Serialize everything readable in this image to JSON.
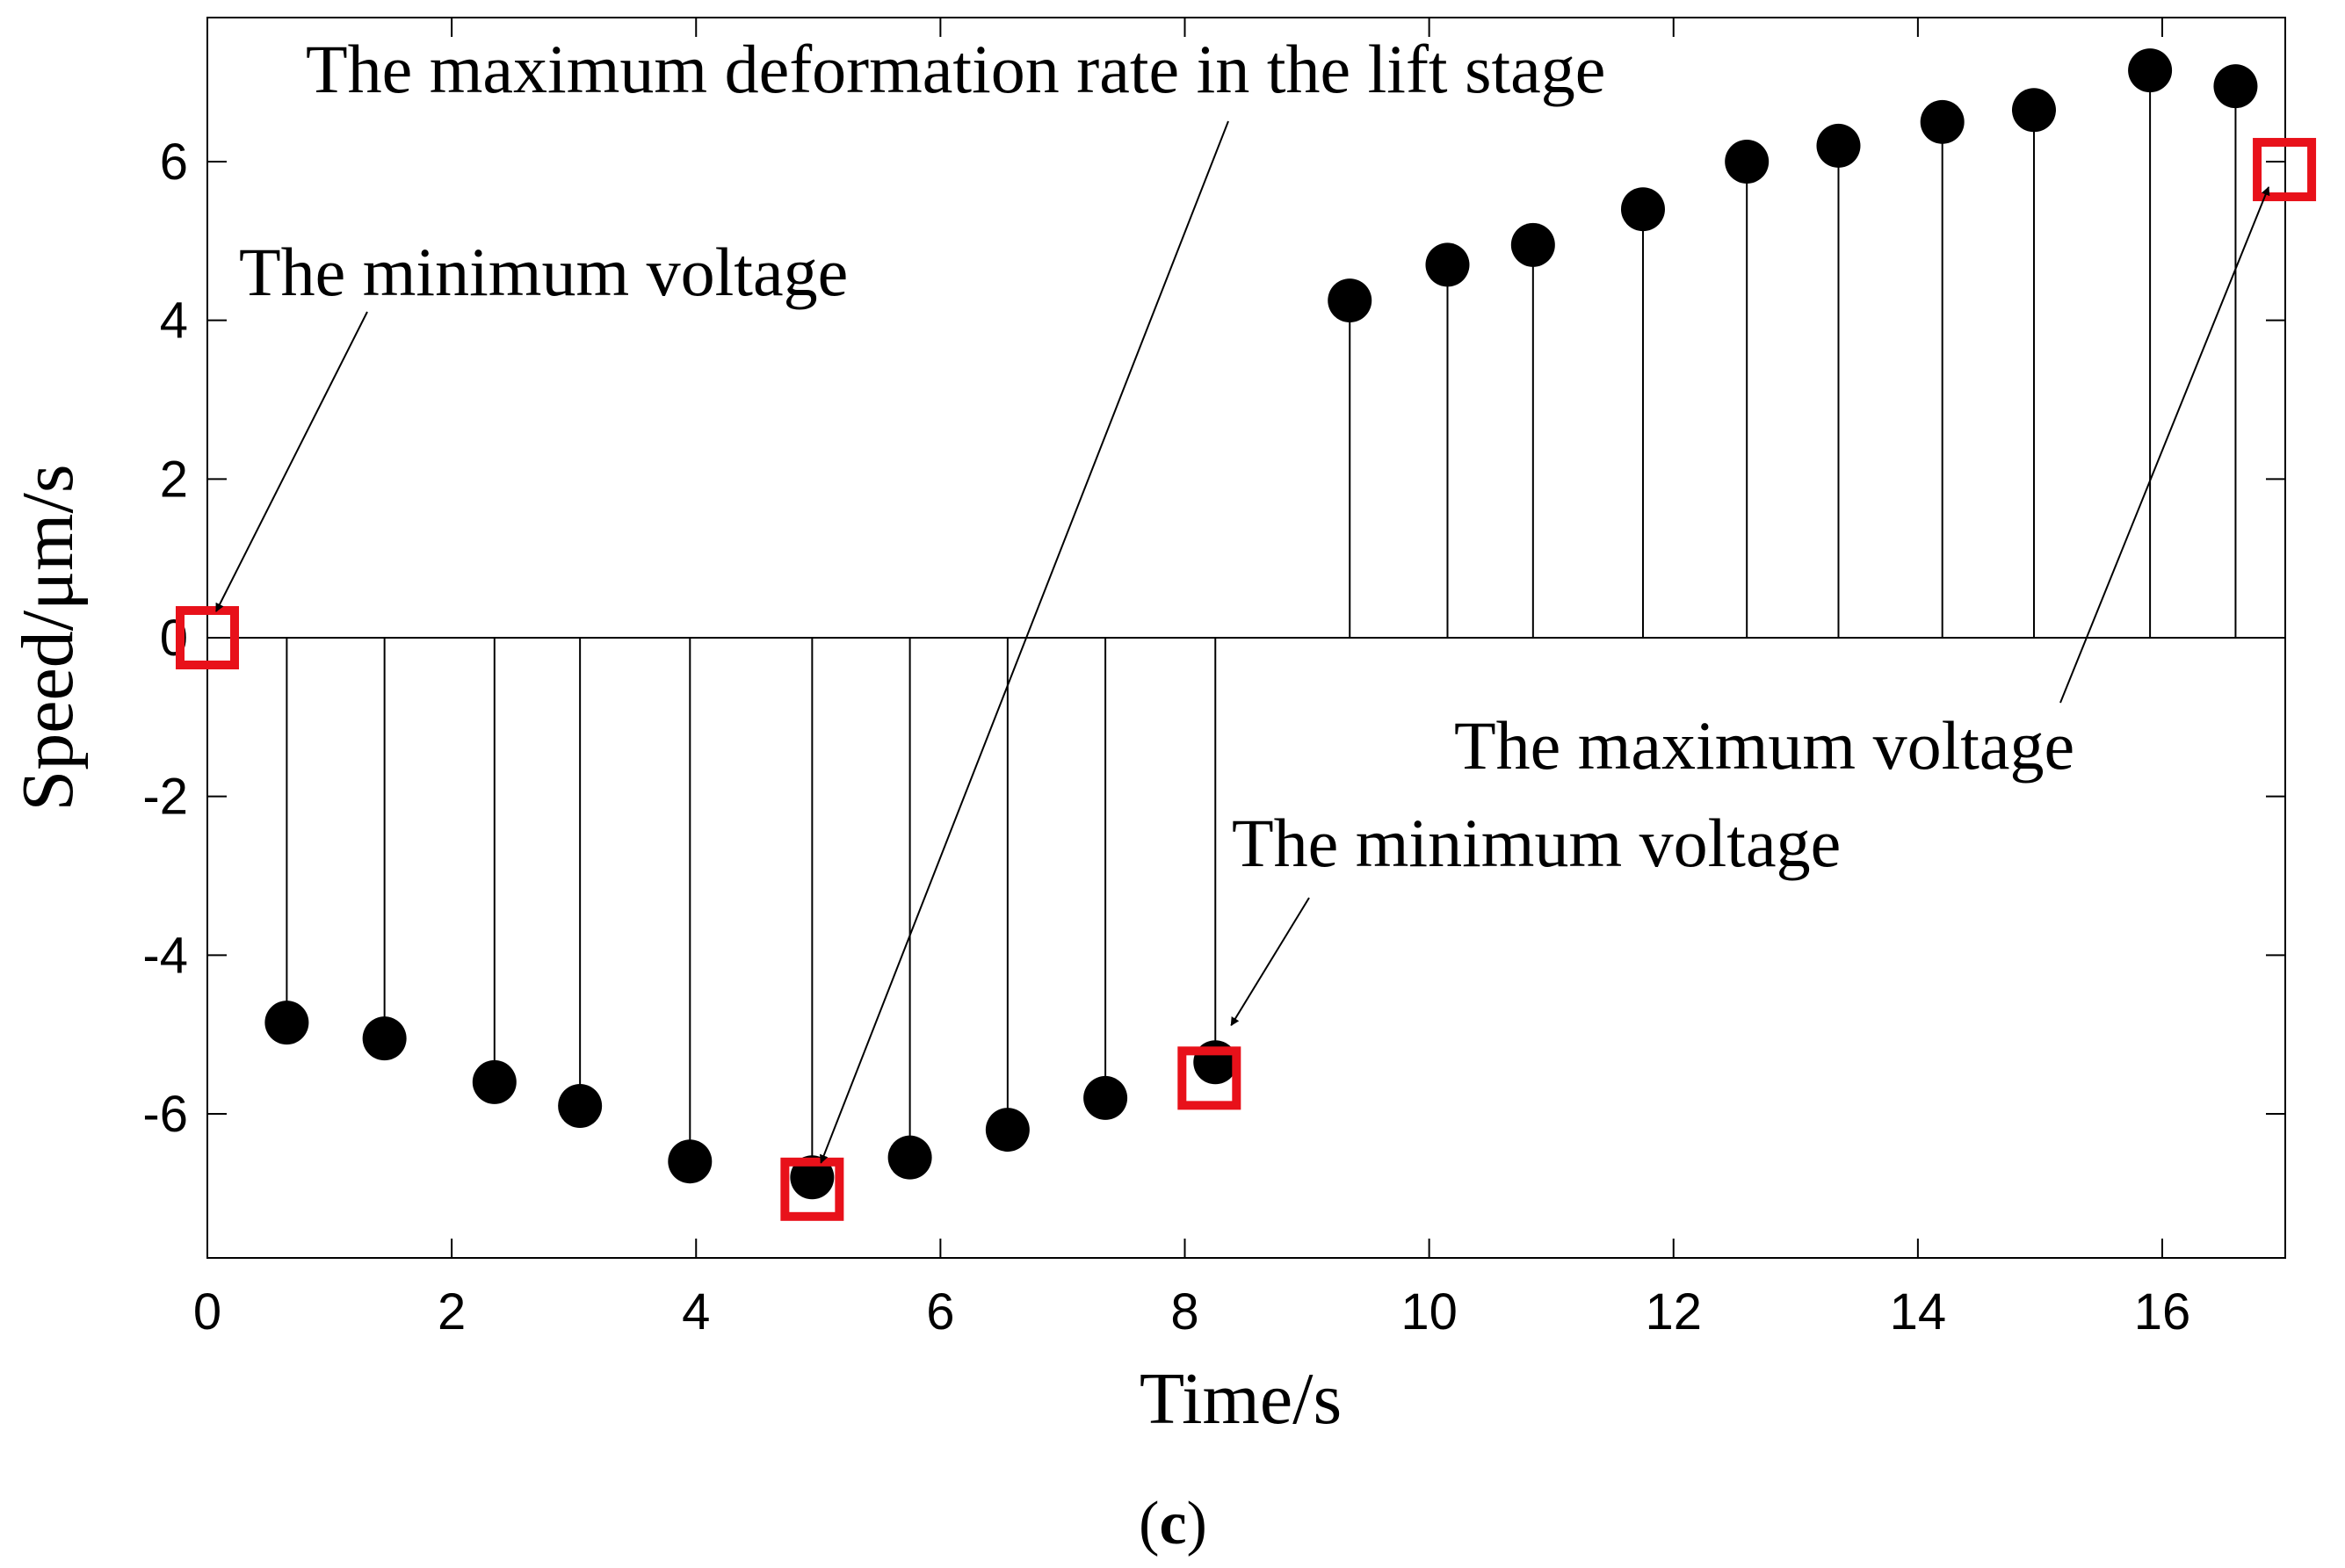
{
  "chart_data": {
    "type": "stem",
    "xlabel": "Time/s",
    "ylabel": "Speed/μm/s",
    "xlim": [
      0,
      17
    ],
    "ylim": [
      -7.8,
      7.8
    ],
    "xticks": [
      0,
      2,
      4,
      6,
      8,
      10,
      12,
      14,
      16
    ],
    "yticks": [
      -6,
      -4,
      -2,
      0,
      2,
      4,
      6
    ],
    "xtick_labels": [
      "0",
      "2",
      "4",
      "6",
      "8",
      "10",
      "12",
      "14",
      "16"
    ],
    "ytick_labels": [
      "-6",
      "-4",
      "-2",
      "0",
      "2",
      "4",
      "6"
    ],
    "baseline": 0,
    "series": [
      {
        "name": "speed",
        "x": [
          0.65,
          1.45,
          2.35,
          3.05,
          3.95,
          4.95,
          5.75,
          6.55,
          7.35,
          8.25,
          9.35,
          10.15,
          10.85,
          11.75,
          12.6,
          13.35,
          14.2,
          14.95,
          15.9,
          16.6
        ],
        "y": [
          -4.85,
          -5.05,
          -5.6,
          -5.9,
          -6.6,
          -6.8,
          -6.55,
          -6.2,
          -5.8,
          -5.35,
          4.25,
          4.7,
          4.95,
          5.4,
          6.0,
          6.2,
          6.5,
          6.65,
          7.15,
          6.95
        ]
      }
    ],
    "highlight_boxes": [
      {
        "name": "min-voltage-start",
        "x": 0,
        "y": 0
      },
      {
        "name": "max-deformation-rate",
        "x": 4.95,
        "y": -6.95
      },
      {
        "name": "min-voltage-middle",
        "x": 8.2,
        "y": -5.55
      },
      {
        "name": "max-voltage",
        "x": 17,
        "y": 5.9
      }
    ],
    "highlight_color": "#e8111a",
    "annotations": [
      {
        "text": "The maximum deformation rate in the lift stage",
        "target_x": 4.95,
        "target_y": -6.95
      },
      {
        "text": "The minimum voltage",
        "target_x": 0,
        "target_y": 0
      },
      {
        "text": "The minimum voltage",
        "target_x": 8.25,
        "target_y": -5.35
      },
      {
        "text": "The maximum voltage",
        "target_x": 17,
        "target_y": 5.9
      }
    ],
    "panel_label": {
      "open": "(",
      "letter": "c",
      "close": ")"
    }
  }
}
